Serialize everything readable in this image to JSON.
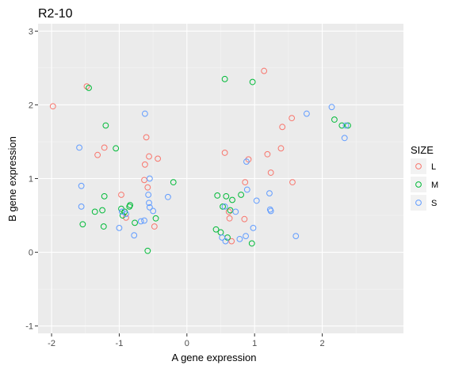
{
  "chart_data": {
    "type": "scatter",
    "title": "R2-10",
    "xlabel": "A gene expression",
    "ylabel": "B gene expression",
    "xlim": [
      -2.2,
      3.2
    ],
    "ylim": [
      -1.1,
      3.1
    ],
    "x_ticks": [
      -2,
      -1,
      0,
      1,
      2
    ],
    "y_ticks": [
      -1,
      0,
      1,
      2,
      3
    ],
    "x_tick_labels": [
      "-2",
      "-1",
      "0",
      "1",
      "2"
    ],
    "y_tick_labels": [
      "-1",
      "0",
      "1",
      "2",
      "3"
    ],
    "grid": true,
    "panel_background": "#ebebeb",
    "legend": {
      "title": "SIZE",
      "placement": "right",
      "entries": [
        "L",
        "M",
        "S"
      ]
    },
    "series": [
      {
        "name": "L",
        "color": "#f8766d",
        "points": [
          [
            -1.98,
            1.98
          ],
          [
            -1.48,
            2.25
          ],
          [
            -1.32,
            1.32
          ],
          [
            -1.22,
            1.42
          ],
          [
            -0.97,
            0.78
          ],
          [
            -0.9,
            0.47
          ],
          [
            -0.63,
            0.98
          ],
          [
            -0.62,
            1.19
          ],
          [
            -0.6,
            1.56
          ],
          [
            -0.58,
            0.88
          ],
          [
            -0.56,
            1.3
          ],
          [
            -0.48,
            0.35
          ],
          [
            -0.43,
            1.27
          ],
          [
            0.56,
            1.35
          ],
          [
            0.62,
            0.55
          ],
          [
            0.63,
            0.46
          ],
          [
            0.66,
            0.15
          ],
          [
            0.85,
            0.45
          ],
          [
            0.86,
            0.95
          ],
          [
            0.91,
            1.26
          ],
          [
            1.14,
            2.46
          ],
          [
            1.19,
            1.33
          ],
          [
            1.24,
            1.08
          ],
          [
            1.39,
            1.41
          ],
          [
            1.41,
            1.7
          ],
          [
            1.55,
            1.82
          ],
          [
            1.56,
            0.95
          ]
        ]
      },
      {
        "name": "M",
        "color": "#00ba38",
        "points": [
          [
            -1.45,
            2.23
          ],
          [
            -1.54,
            0.38
          ],
          [
            -1.36,
            0.55
          ],
          [
            -1.25,
            0.57
          ],
          [
            -1.23,
            0.35
          ],
          [
            -1.22,
            0.76
          ],
          [
            -1.2,
            1.72
          ],
          [
            -1.05,
            1.41
          ],
          [
            -0.97,
            0.59
          ],
          [
            -0.95,
            0.5
          ],
          [
            -0.92,
            0.55
          ],
          [
            -0.85,
            0.62
          ],
          [
            -0.84,
            0.64
          ],
          [
            -0.77,
            0.4
          ],
          [
            -0.58,
            0.02
          ],
          [
            -0.46,
            0.46
          ],
          [
            -0.2,
            0.95
          ],
          [
            0.43,
            0.31
          ],
          [
            0.45,
            0.77
          ],
          [
            0.5,
            0.27
          ],
          [
            0.53,
            0.62
          ],
          [
            0.56,
            2.35
          ],
          [
            0.58,
            0.76
          ],
          [
            0.6,
            0.2
          ],
          [
            0.64,
            0.57
          ],
          [
            0.67,
            0.71
          ],
          [
            0.8,
            0.78
          ],
          [
            0.96,
            0.12
          ],
          [
            0.97,
            2.31
          ],
          [
            2.18,
            1.8
          ],
          [
            2.29,
            1.72
          ],
          [
            2.38,
            1.72
          ]
        ]
      },
      {
        "name": "S",
        "color": "#619cff",
        "points": [
          [
            -1.59,
            1.42
          ],
          [
            -1.56,
            0.9
          ],
          [
            -1.56,
            0.62
          ],
          [
            -1.0,
            0.33
          ],
          [
            -0.96,
            0.55
          ],
          [
            -0.9,
            0.52
          ],
          [
            -0.78,
            0.23
          ],
          [
            -0.68,
            0.42
          ],
          [
            -0.63,
            0.43
          ],
          [
            -0.62,
            1.88
          ],
          [
            -0.57,
            0.78
          ],
          [
            -0.56,
            0.67
          ],
          [
            -0.55,
            0.61
          ],
          [
            -0.55,
            1.0
          ],
          [
            -0.5,
            0.56
          ],
          [
            -0.28,
            0.75
          ],
          [
            0.52,
            0.2
          ],
          [
            0.56,
            0.62
          ],
          [
            0.57,
            0.15
          ],
          [
            0.72,
            0.55
          ],
          [
            0.78,
            0.18
          ],
          [
            0.87,
            0.22
          ],
          [
            0.88,
            1.23
          ],
          [
            0.89,
            0.85
          ],
          [
            0.98,
            0.33
          ],
          [
            1.03,
            0.7
          ],
          [
            1.22,
            0.8
          ],
          [
            1.23,
            0.58
          ],
          [
            1.24,
            0.56
          ],
          [
            1.61,
            0.22
          ],
          [
            1.77,
            1.88
          ],
          [
            2.14,
            1.97
          ],
          [
            2.33,
            1.55
          ],
          [
            2.35,
            1.72
          ]
        ]
      }
    ]
  }
}
